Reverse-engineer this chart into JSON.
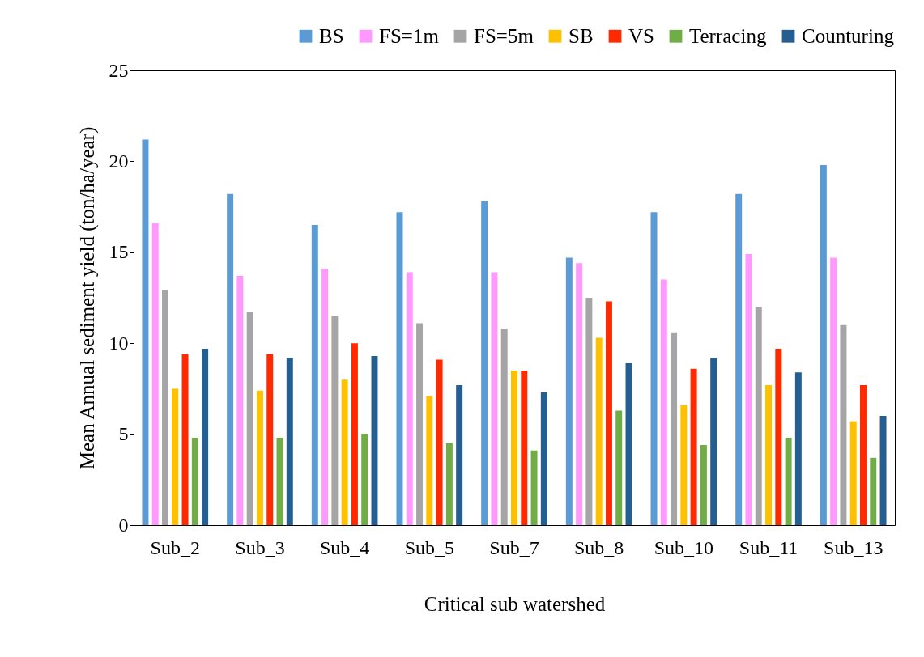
{
  "chart_data": {
    "type": "bar",
    "xlabel": "Critical  sub watershed",
    "ylabel": "Mean Annual sediment yield (ton/ha/year)",
    "categories": [
      "Sub_2",
      "Sub_3",
      "Sub_4",
      "Sub_5",
      "Sub_7",
      "Sub_8",
      "Sub_10",
      "Sub_11",
      "Sub_13"
    ],
    "series": [
      {
        "name": "BS",
        "color": "#5b9bd5",
        "values": [
          21.2,
          18.2,
          16.5,
          17.2,
          17.8,
          14.7,
          17.2,
          18.2,
          19.8
        ]
      },
      {
        "name": "FS=1m",
        "color": "#ff99ff",
        "values": [
          16.6,
          13.7,
          14.1,
          13.9,
          13.9,
          14.4,
          13.5,
          14.9,
          14.7
        ]
      },
      {
        "name": "FS=5m",
        "color": "#a5a5a5",
        "values": [
          12.9,
          11.7,
          11.5,
          11.1,
          10.8,
          12.5,
          10.6,
          12.0,
          11.0
        ]
      },
      {
        "name": "SB",
        "color": "#ffc000",
        "values": [
          7.5,
          7.4,
          8.0,
          7.1,
          8.5,
          10.3,
          6.6,
          7.7,
          5.7
        ]
      },
      {
        "name": "VS",
        "color": "#ff2a00",
        "values": [
          9.4,
          9.4,
          10.0,
          9.1,
          8.5,
          12.3,
          8.6,
          9.7,
          7.7
        ]
      },
      {
        "name": "Terracing",
        "color": "#70ad47",
        "values": [
          4.8,
          4.8,
          5.0,
          4.5,
          4.1,
          6.3,
          4.4,
          4.8,
          3.7
        ]
      },
      {
        "name": "Counturing",
        "color": "#255e91",
        "values": [
          9.7,
          9.2,
          9.3,
          7.7,
          7.3,
          8.9,
          9.2,
          8.4,
          6.0
        ]
      }
    ],
    "ylim": [
      0,
      25
    ],
    "yticks": [
      0,
      5,
      10,
      15,
      20,
      25
    ],
    "grid": false,
    "legend": "top right"
  }
}
